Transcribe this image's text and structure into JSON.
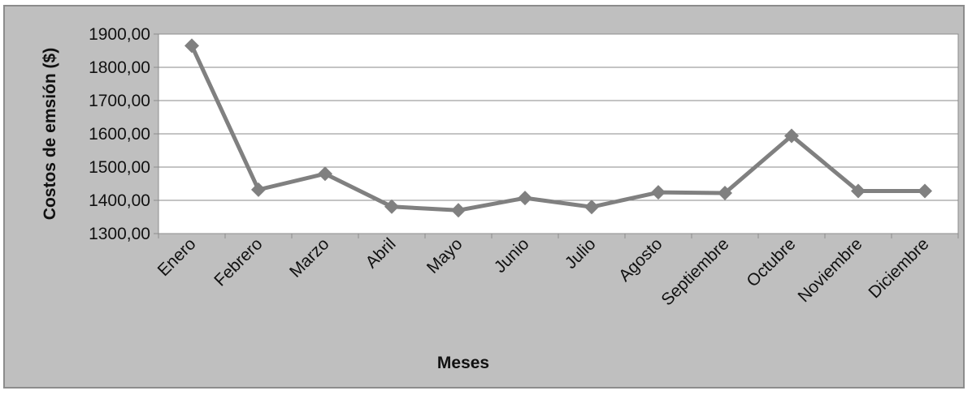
{
  "chart_data": {
    "type": "line",
    "title": "",
    "xlabel": "Meses",
    "ylabel": "Costos de emsión ($)",
    "categories": [
      "Enero",
      "Febrero",
      "Marzo",
      "Abril",
      "Mayo",
      "Junio",
      "Julio",
      "Agosto",
      "Septiembre",
      "Octubre",
      "Noviembre",
      "Diciembre"
    ],
    "series": [
      {
        "values": [
          1865,
          1432,
          1480,
          1381,
          1370,
          1407,
          1380,
          1424,
          1422,
          1594,
          1428,
          1428
        ],
        "color": "#808080",
        "marker": "diamond"
      }
    ],
    "ylim": [
      1300,
      1900
    ],
    "yticks": [
      1300,
      1400,
      1500,
      1600,
      1700,
      1800,
      1900
    ],
    "ytick_labels": [
      "1300,00",
      "1400,00",
      "1500,00",
      "1600,00",
      "1700,00",
      "1800,00",
      "1900,00"
    ],
    "grid": true,
    "legend": "none",
    "plot_background": "#ffffff",
    "chart_background": "#bfbfbf",
    "gridline_color": "#888888"
  }
}
